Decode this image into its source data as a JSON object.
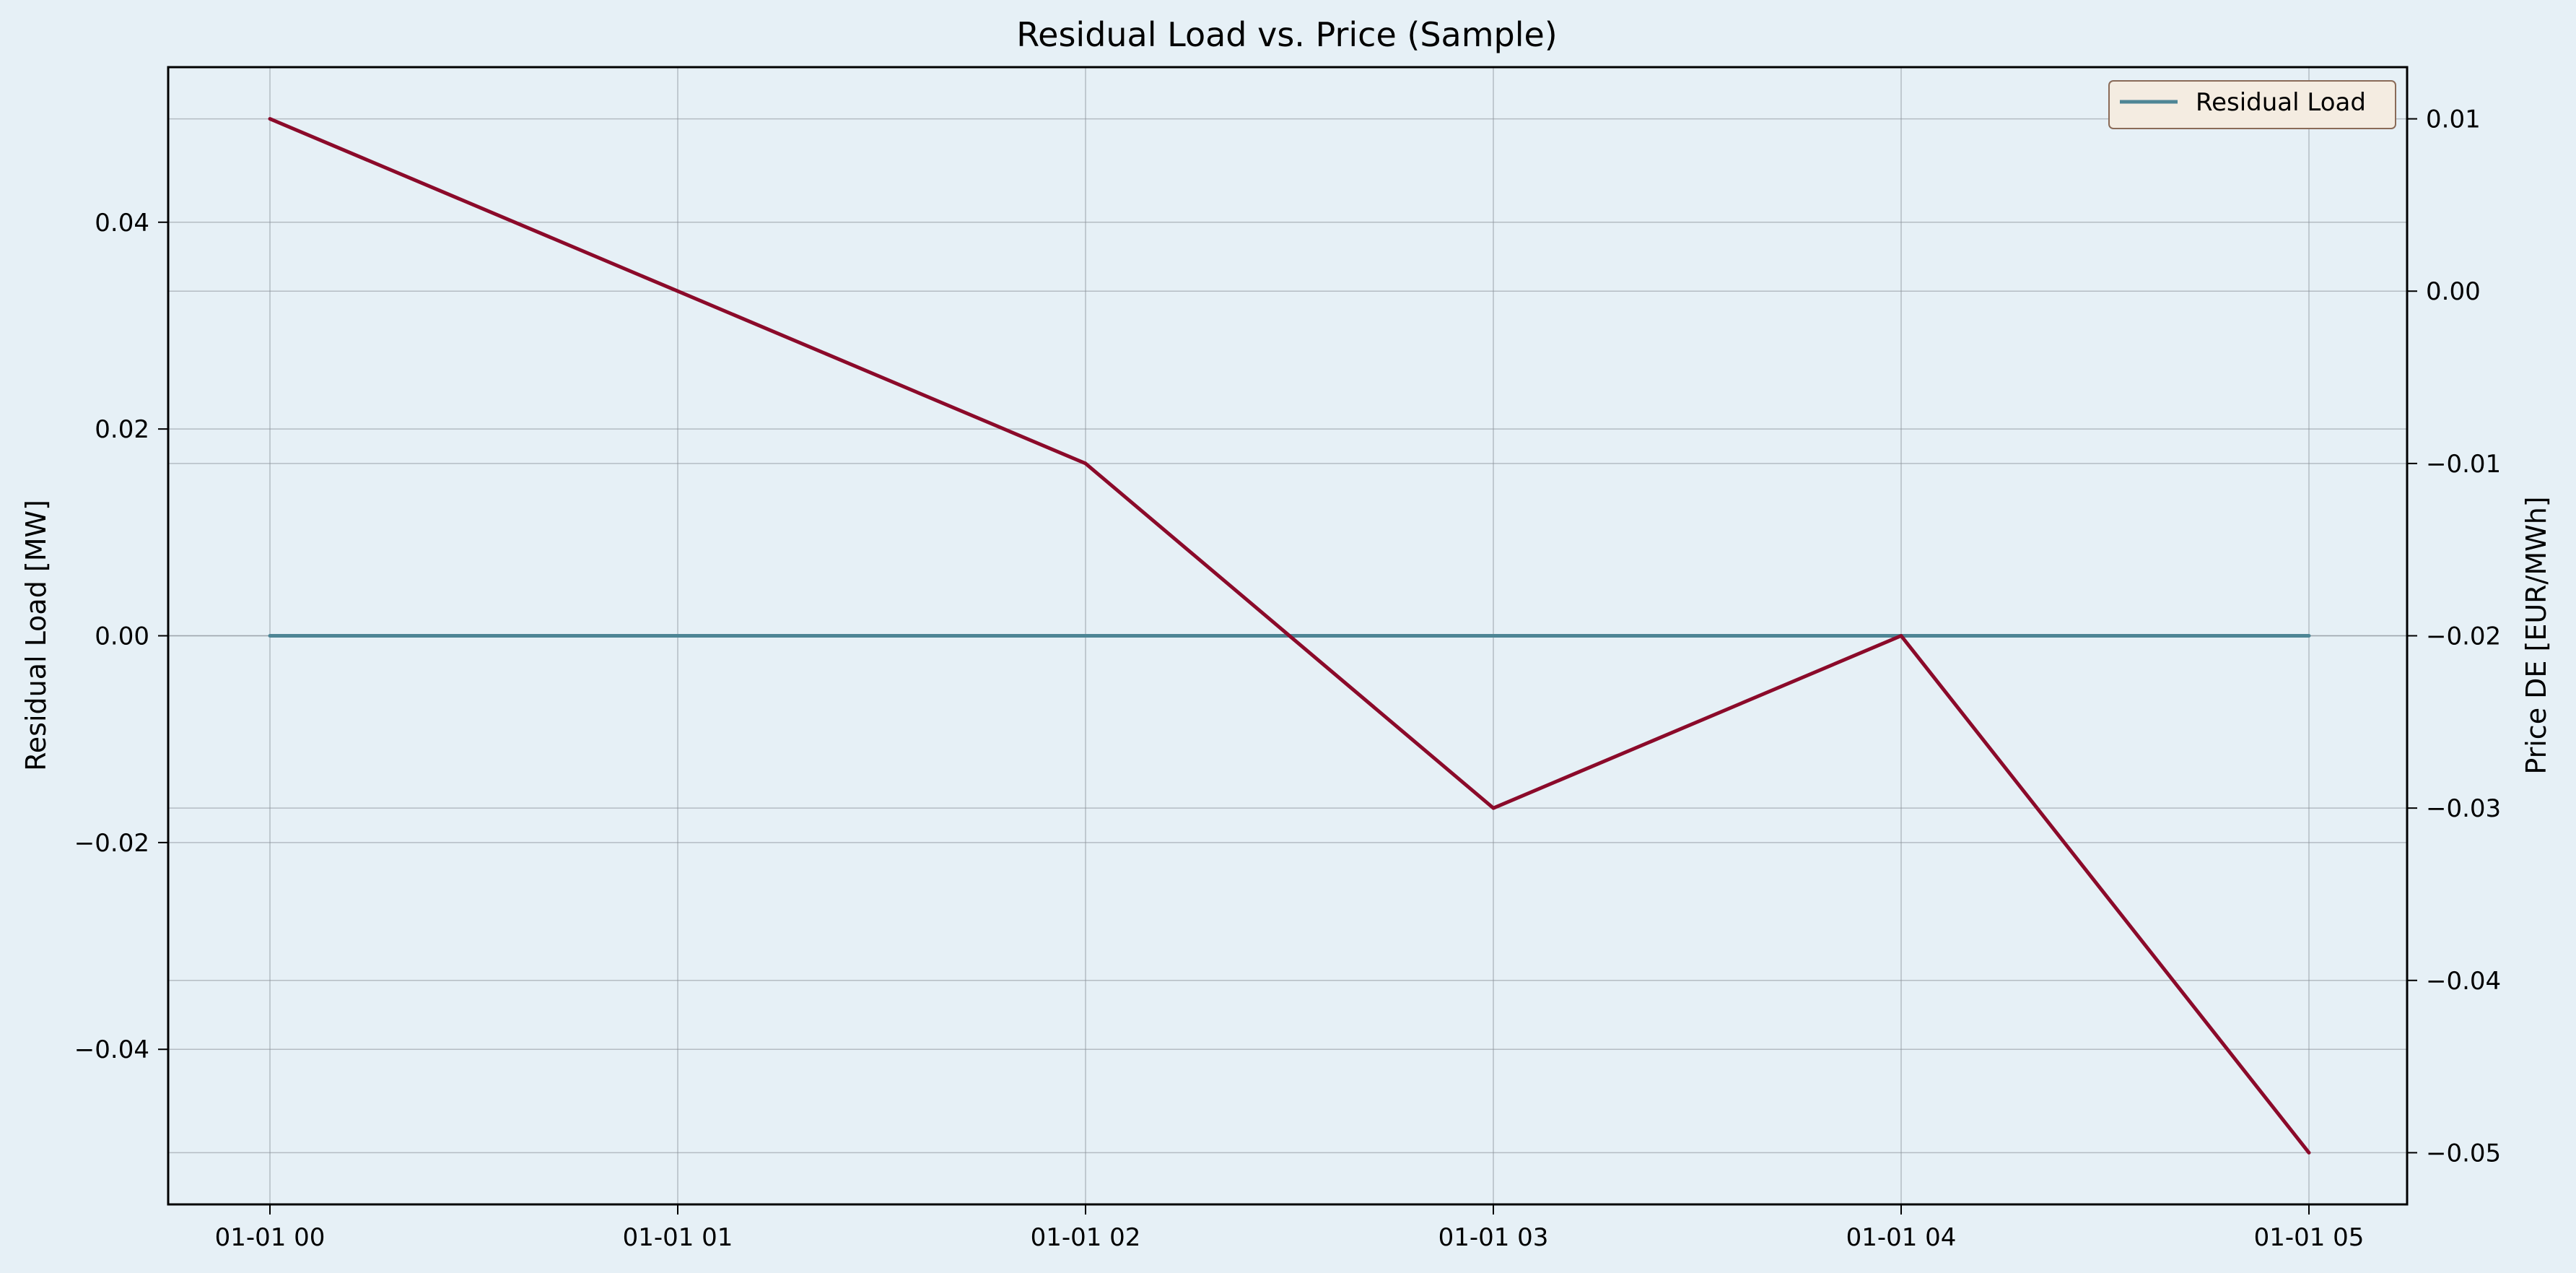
{
  "chart_data": {
    "type": "line",
    "title": "Residual Load vs. Price (Sample)",
    "x_tick_labels": [
      "01-01 00",
      "01-01 01",
      "01-01 02",
      "01-01 03",
      "01-01 04",
      "01-01 05"
    ],
    "x": [
      "01-01 00",
      "01-01 01",
      "01-01 02",
      "01-01 03",
      "01-01 04",
      "01-01 05"
    ],
    "xlim": [
      "",
      ""
    ],
    "left_axis": {
      "label": "Residual Load [MW]",
      "ticks": [
        0.04,
        0.02,
        0.0,
        -0.02,
        -0.04
      ],
      "tick_labels": [
        "0.04",
        "0.02",
        "0.00",
        "−0.02",
        "−0.04"
      ],
      "ylim": [
        -0.055,
        0.055
      ]
    },
    "right_axis": {
      "label": "Price DE [EUR/MWh]",
      "ticks": [
        0.01,
        0.0,
        -0.01,
        -0.02,
        -0.03,
        -0.04,
        -0.05
      ],
      "tick_labels": [
        "0.01",
        "0.00",
        "−0.01",
        "−0.02",
        "−0.03",
        "−0.04",
        "−0.05"
      ],
      "ylim": [
        -0.053,
        0.013
      ]
    },
    "series": [
      {
        "name": "Residual Load",
        "axis": "left",
        "color": "#4e8595",
        "values": [
          0,
          0,
          0,
          0,
          0,
          0
        ]
      },
      {
        "name": "",
        "axis": "right",
        "color": "#8b0a2a",
        "values": [
          0.01,
          0.0,
          -0.01,
          -0.03,
          -0.02,
          -0.05
        ]
      }
    ],
    "legend": {
      "placement": "top-right",
      "entries": [
        "Residual Load"
      ]
    },
    "grid": true,
    "colors": {
      "background": "#e6f0f6",
      "legend_bg": "#f4ece1",
      "legend_border": "#8a6b58"
    }
  }
}
